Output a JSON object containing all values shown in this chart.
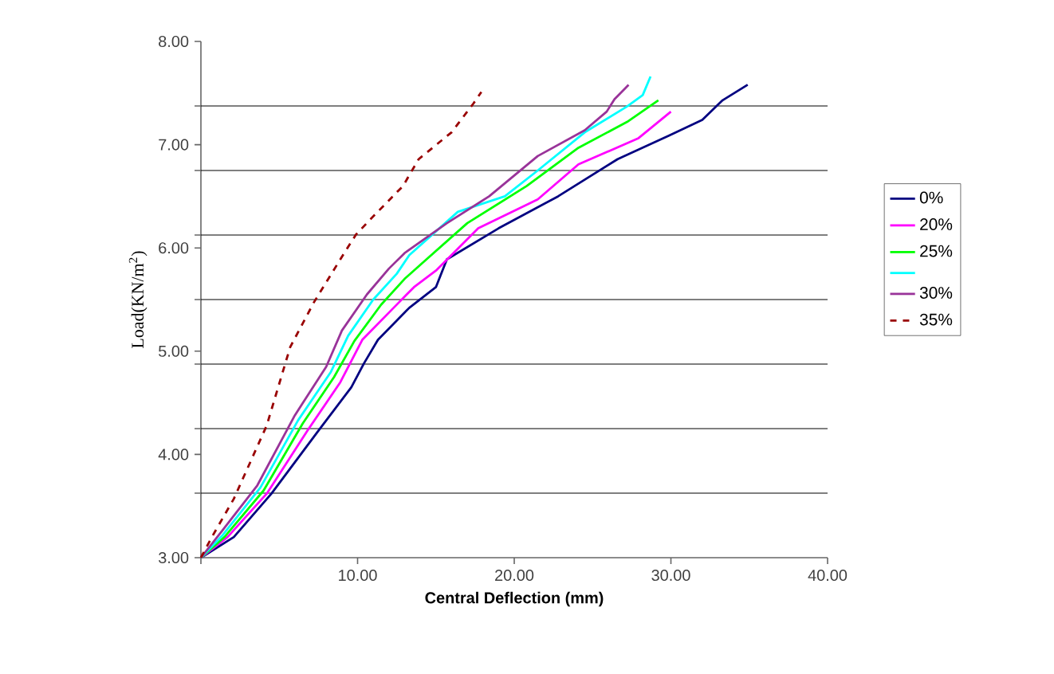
{
  "chart_data": {
    "type": "line",
    "xlabel": "Central Deflection (mm)",
    "ylabel": "Load(KN/m$^{2}$)",
    "xlim": [
      0,
      40
    ],
    "ylim": [
      3,
      8
    ],
    "xticks": [
      {
        "value": 0,
        "label": null
      },
      {
        "value": 10,
        "label": "10.00"
      },
      {
        "value": 20,
        "label": "20.00"
      },
      {
        "value": 30,
        "label": "30.00"
      },
      {
        "value": 40,
        "label": "40.00"
      }
    ],
    "yticks": [
      {
        "value": 3,
        "label": "3.00"
      },
      {
        "value": 3.625,
        "label": null
      },
      {
        "value": 4,
        "label": "4.00"
      },
      {
        "value": 4.25,
        "label": null
      },
      {
        "value": 4.875,
        "label": null
      },
      {
        "value": 5,
        "label": "5.00"
      },
      {
        "value": 5.5,
        "label": null
      },
      {
        "value": 6,
        "label": "6.00"
      },
      {
        "value": 6.125,
        "label": null
      },
      {
        "value": 6.75,
        "label": null
      },
      {
        "value": 7,
        "label": "7.00"
      },
      {
        "value": 7.375,
        "label": null
      },
      {
        "value": 8,
        "label": "8.00"
      }
    ],
    "grid": "y",
    "legend": "right",
    "marker": "none",
    "series": [
      {
        "name": "0%",
        "color": "#000080",
        "line_style": "solid",
        "x": [
          0,
          2.1,
          4.5,
          7.5,
          9.6,
          10.4,
          11.3,
          13.3,
          15.0,
          15.7,
          19.0,
          22.8,
          26.6,
          29.9,
          32.0,
          33.3,
          34.9
        ],
        "values": [
          3.0,
          3.2,
          3.62,
          4.23,
          4.65,
          4.88,
          5.11,
          5.42,
          5.62,
          5.89,
          6.19,
          6.5,
          6.86,
          7.09,
          7.24,
          7.43,
          7.58
        ]
      },
      {
        "name": "20%",
        "color": "#ff00ff",
        "line_style": "solid",
        "x": [
          0,
          1.7,
          4.2,
          6.8,
          8.9,
          10.3,
          12.3,
          13.6,
          15.0,
          17.7,
          21.5,
          24.1,
          27.9,
          30.0
        ],
        "values": [
          3.0,
          3.2,
          3.62,
          4.23,
          4.7,
          5.11,
          5.42,
          5.62,
          5.78,
          6.19,
          6.47,
          6.81,
          7.06,
          7.32
        ]
      },
      {
        "name": "25%",
        "color": "#00ff00",
        "line_style": "solid",
        "x": [
          0,
          1.5,
          4.0,
          6.5,
          8.5,
          9.8,
          11.5,
          13.0,
          14.4,
          17.0,
          20.8,
          24.1,
          27.2,
          29.2
        ],
        "values": [
          3.0,
          3.2,
          3.65,
          4.3,
          4.75,
          5.1,
          5.45,
          5.7,
          5.89,
          6.24,
          6.6,
          6.97,
          7.22,
          7.43
        ]
      },
      {
        "color": "#00ffff",
        "line_style": "solid",
        "x": [
          0,
          1.4,
          3.8,
          6.2,
          8.3,
          9.4,
          11.0,
          12.5,
          13.3,
          16.4,
          19.4,
          21.5,
          24.5,
          27.2,
          28.2,
          28.7
        ],
        "values": [
          3.0,
          3.22,
          3.68,
          4.33,
          4.8,
          5.15,
          5.5,
          5.75,
          5.93,
          6.35,
          6.5,
          6.75,
          7.12,
          7.37,
          7.48,
          7.66
        ]
      },
      {
        "name": "30%",
        "color": "#993399",
        "line_style": "solid",
        "x": [
          0,
          1.3,
          3.6,
          6.0,
          8.0,
          9.0,
          10.6,
          12.0,
          13.0,
          15.7,
          18.4,
          21.5,
          24.5,
          25.9,
          26.4,
          27.3
        ],
        "values": [
          3.0,
          3.25,
          3.7,
          4.38,
          4.85,
          5.2,
          5.55,
          5.8,
          5.95,
          6.24,
          6.5,
          6.89,
          7.14,
          7.32,
          7.44,
          7.58
        ]
      },
      {
        "name": "35%",
        "color": "#990000",
        "line_style": "dashed",
        "x": [
          0,
          0.7,
          2.1,
          4.2,
          5.7,
          7.2,
          8.9,
          9.9,
          10.9,
          12.9,
          13.9,
          16.0,
          17.4,
          17.9
        ],
        "values": [
          3.0,
          3.2,
          3.57,
          4.28,
          5.04,
          5.47,
          5.89,
          6.13,
          6.29,
          6.6,
          6.86,
          7.12,
          7.4,
          7.51
        ]
      }
    ]
  }
}
